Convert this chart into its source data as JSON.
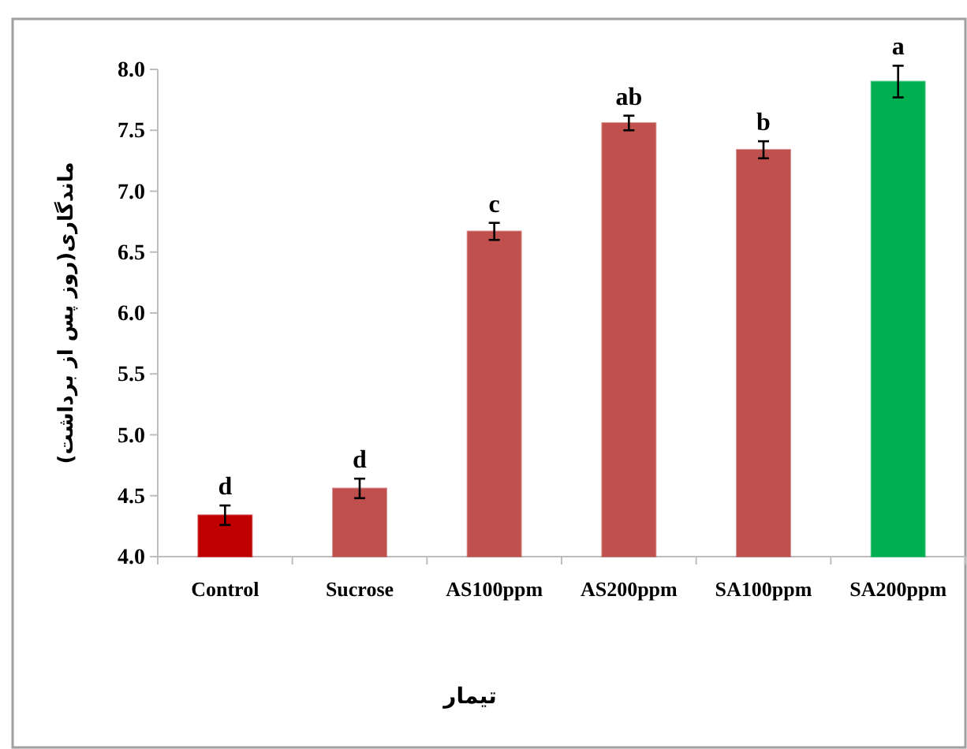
{
  "chart_data": {
    "type": "bar",
    "xlabel": "تیمار",
    "ylabel": "ماندگاری(روز پس از برداشت)",
    "categories": [
      "Control",
      "Sucrose",
      "AS100ppm",
      "AS200ppm",
      "SA100ppm",
      "SA200ppm"
    ],
    "values": [
      4.34,
      4.56,
      6.67,
      7.56,
      7.34,
      7.9
    ],
    "errors": [
      0.08,
      0.08,
      0.07,
      0.06,
      0.07,
      0.13
    ],
    "colors": [
      "#c00000",
      "#c0504d",
      "#c0504d",
      "#c0504d",
      "#c0504d",
      "#00b050"
    ],
    "ylim": [
      4.0,
      8.0
    ],
    "yticks": [
      {
        "value": 4.0,
        "label": "4.0"
      },
      {
        "value": 4.5,
        "label": "4.5"
      },
      {
        "value": 5.0,
        "label": "5.0"
      },
      {
        "value": 5.5,
        "label": "5.5"
      },
      {
        "value": 6.0,
        "label": "6.0"
      },
      {
        "value": 6.5,
        "label": "6.5"
      },
      {
        "value": 7.0,
        "label": "7.0"
      },
      {
        "value": 7.5,
        "label": "7.5"
      },
      {
        "value": 8.0,
        "label": "8.0"
      }
    ],
    "grid": false,
    "annotations": [
      {
        "text": "d",
        "x": "Control",
        "y": 4.34
      },
      {
        "text": "d",
        "x": "Sucrose",
        "y": 4.56
      },
      {
        "text": "c",
        "x": "AS100ppm",
        "y": 6.67
      },
      {
        "text": "ab",
        "x": "AS200ppm",
        "y": 7.56
      },
      {
        "text": "b",
        "x": "SA100ppm",
        "y": 7.34
      },
      {
        "text": "a",
        "x": "SA200ppm",
        "y": 7.9
      }
    ]
  }
}
